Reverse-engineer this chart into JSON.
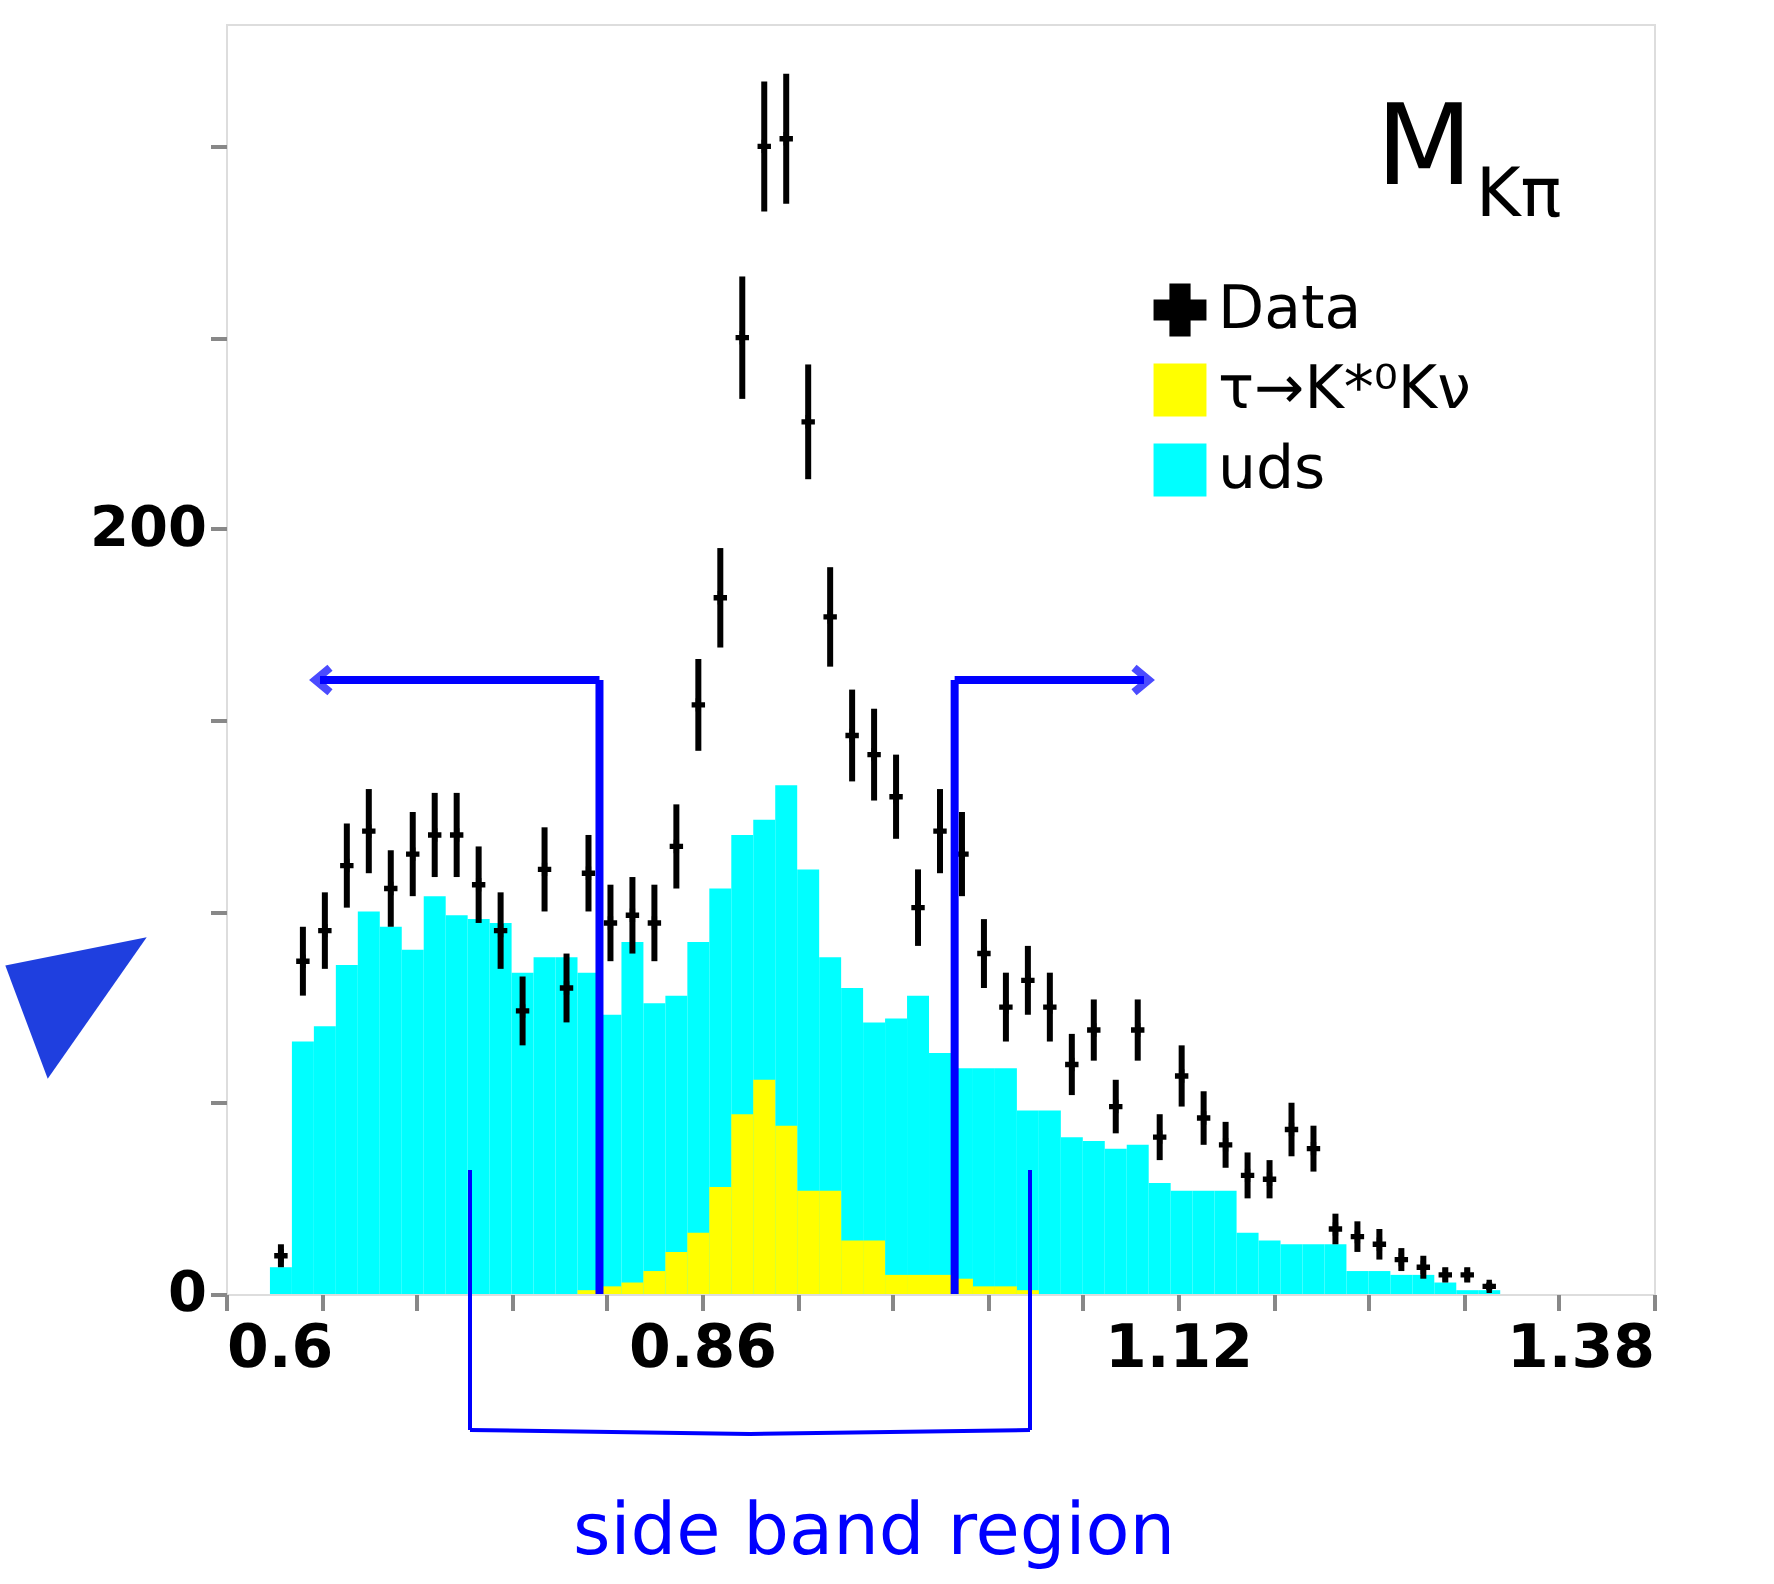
{
  "chart_data": {
    "type": "histogram",
    "annotations": [
      "M$_{Kπ}$",
      "side band region"
    ],
    "bins": [
      0.6,
      0.612,
      0.624,
      0.636,
      0.648,
      0.66,
      0.672,
      0.684,
      0.696,
      0.708,
      0.72,
      0.732,
      0.744,
      0.756,
      0.768,
      0.78,
      0.792,
      0.804,
      0.816,
      0.828,
      0.84,
      0.852,
      0.864,
      0.876,
      0.888,
      0.9,
      0.912,
      0.924,
      0.936,
      0.948,
      0.96,
      0.972,
      0.984,
      0.996,
      1.008,
      1.02,
      1.032,
      1.044,
      1.056,
      1.068,
      1.08,
      1.092,
      1.104,
      1.116,
      1.128,
      1.14,
      1.152,
      1.164,
      1.176,
      1.188,
      1.2,
      1.212,
      1.224,
      1.236,
      1.248,
      1.26,
      1.272,
      1.284,
      1.296,
      1.308,
      1.32,
      1.332,
      1.344,
      1.356,
      1.368,
      1.38
    ],
    "xlim": [
      0.6,
      1.38
    ],
    "xticks": [
      0.6,
      {
        "value": 0.652,
        "label": null
      },
      {
        "value": 0.704,
        "label": null
      },
      {
        "value": 0.756,
        "label": null
      },
      {
        "value": 0.808,
        "label": null
      },
      0.86,
      {
        "value": 0.912,
        "label": null
      },
      {
        "value": 0.964,
        "label": null
      },
      {
        "value": 1.016,
        "label": null
      },
      {
        "value": 1.068,
        "label": null
      },
      1.12,
      {
        "value": 1.172,
        "label": null
      },
      {
        "value": 1.224,
        "label": null
      },
      {
        "value": 1.276,
        "label": null
      },
      {
        "value": 1.328,
        "label": null
      },
      1.38
    ],
    "ylim": [
      0,
      332
    ],
    "yticks": [
      0,
      {
        "value": 50,
        "label": null
      },
      {
        "value": 100,
        "label": null
      },
      {
        "value": 150,
        "label": null
      },
      200,
      {
        "value": 250,
        "label": null
      },
      {
        "value": 300,
        "label": null
      }
    ],
    "legend": "top right",
    "marker": "cross",
    "ref_lines": [
      {
        "axis": "x",
        "value": 0.804,
        "color": "#0000ff"
      },
      {
        "axis": "x",
        "value": 0.998,
        "color": "#0000ff"
      }
    ],
    "series": [
      {
        "name": "Data",
        "type": "scatter",
        "color": "#000000",
        "x": [
          0.63,
          0.642,
          0.654,
          0.666,
          0.678,
          0.69,
          0.702,
          0.714,
          0.726,
          0.738,
          0.75,
          0.762,
          0.774,
          0.786,
          0.798,
          0.81,
          0.822,
          0.834,
          0.846,
          0.858,
          0.87,
          0.882,
          0.894,
          0.906,
          0.918,
          0.93,
          0.942,
          0.954,
          0.966,
          0.978,
          0.99,
          1.002,
          1.014,
          1.026,
          1.038,
          1.05,
          1.062,
          1.074,
          1.086,
          1.098,
          1.11,
          1.122,
          1.134,
          1.146,
          1.158,
          1.17,
          1.182,
          1.194,
          1.206,
          1.218,
          1.23,
          1.242,
          1.254,
          1.266,
          1.278,
          1.29
        ],
        "values": [
          10,
          87,
          95,
          112,
          121,
          106,
          115,
          120,
          120,
          107,
          95,
          74,
          111,
          80,
          110,
          97,
          99,
          97,
          117,
          154,
          182,
          250,
          300,
          302,
          228,
          177,
          146,
          141,
          130,
          101,
          121,
          115,
          89,
          75,
          82,
          75,
          60,
          69,
          49,
          69,
          41,
          57,
          46,
          39,
          31,
          30,
          43,
          38,
          17,
          15,
          13,
          9,
          7,
          5,
          5,
          2
        ],
        "errors": [
          3,
          9,
          10,
          11,
          11,
          10,
          11,
          11,
          11,
          10,
          10,
          9,
          11,
          9,
          10,
          10,
          10,
          10,
          11,
          12,
          13,
          16,
          17,
          17,
          15,
          13,
          12,
          12,
          11,
          10,
          11,
          11,
          9,
          9,
          9,
          9,
          8,
          8,
          7,
          8,
          6,
          8,
          7,
          6,
          6,
          5,
          7,
          6,
          4,
          4,
          4,
          3,
          3,
          2,
          2,
          1
        ]
      },
      {
        "name": "τ→K*⁰Kν",
        "color": "#ffff00",
        "values": [
          0,
          0,
          0,
          0,
          0,
          0,
          0,
          0,
          0,
          0,
          0,
          0,
          0,
          0,
          0,
          0,
          1,
          2,
          3,
          6,
          11,
          16,
          28,
          47,
          56,
          44,
          27,
          27,
          14,
          14,
          5,
          5,
          5,
          4,
          2,
          2,
          1,
          0,
          0,
          0,
          0,
          0,
          0,
          0,
          0,
          0,
          0,
          0,
          0,
          0,
          0,
          0,
          0,
          0,
          0,
          0,
          0,
          0,
          0,
          0,
          0,
          0,
          0,
          0,
          0
        ]
      },
      {
        "name": "uds",
        "color": "#00ffff",
        "values": [
          0,
          0,
          7,
          66,
          70,
          86,
          100,
          96,
          90,
          104,
          99,
          98,
          97,
          84,
          88,
          88,
          84,
          73,
          92,
          76,
          78,
          92,
          106,
          120,
          124,
          133,
          111,
          88,
          80,
          71,
          72,
          78,
          63,
          59,
          59,
          59,
          48,
          48,
          41,
          40,
          38,
          39,
          29,
          27,
          27,
          27,
          16,
          14,
          13,
          13,
          13,
          6,
          6,
          5,
          5,
          3,
          1,
          1,
          0,
          0,
          0,
          0,
          0,
          0,
          0
        ]
      }
    ]
  }
}
